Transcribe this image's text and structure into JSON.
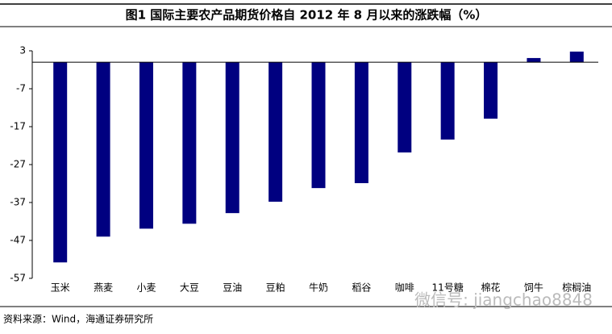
{
  "chart_data": {
    "type": "bar",
    "title": "图1  国际主要农产品期货价格自 2012 年 8 月以来的涨跌幅（%）",
    "source": "资料来源：Wind，海通证券研究所",
    "watermark": "微信号: jiangchao8848",
    "categories": [
      "玉米",
      "燕麦",
      "小麦",
      "大豆",
      "豆油",
      "豆粕",
      "牛奶",
      "稻谷",
      "咖啡",
      "11号糖",
      "棉花",
      "饲牛",
      "棕榈油"
    ],
    "values": [
      -52.8,
      -46,
      -43.9,
      -42.6,
      -39.8,
      -36.8,
      -33.2,
      -31.9,
      -23.8,
      -20.4,
      -14.9,
      1.1,
      2.8
    ],
    "color": "#000080",
    "ylim": [
      -57,
      3
    ],
    "yticks": [
      3,
      -7,
      -17,
      -27,
      -37,
      -47,
      -57
    ],
    "grid": false
  }
}
